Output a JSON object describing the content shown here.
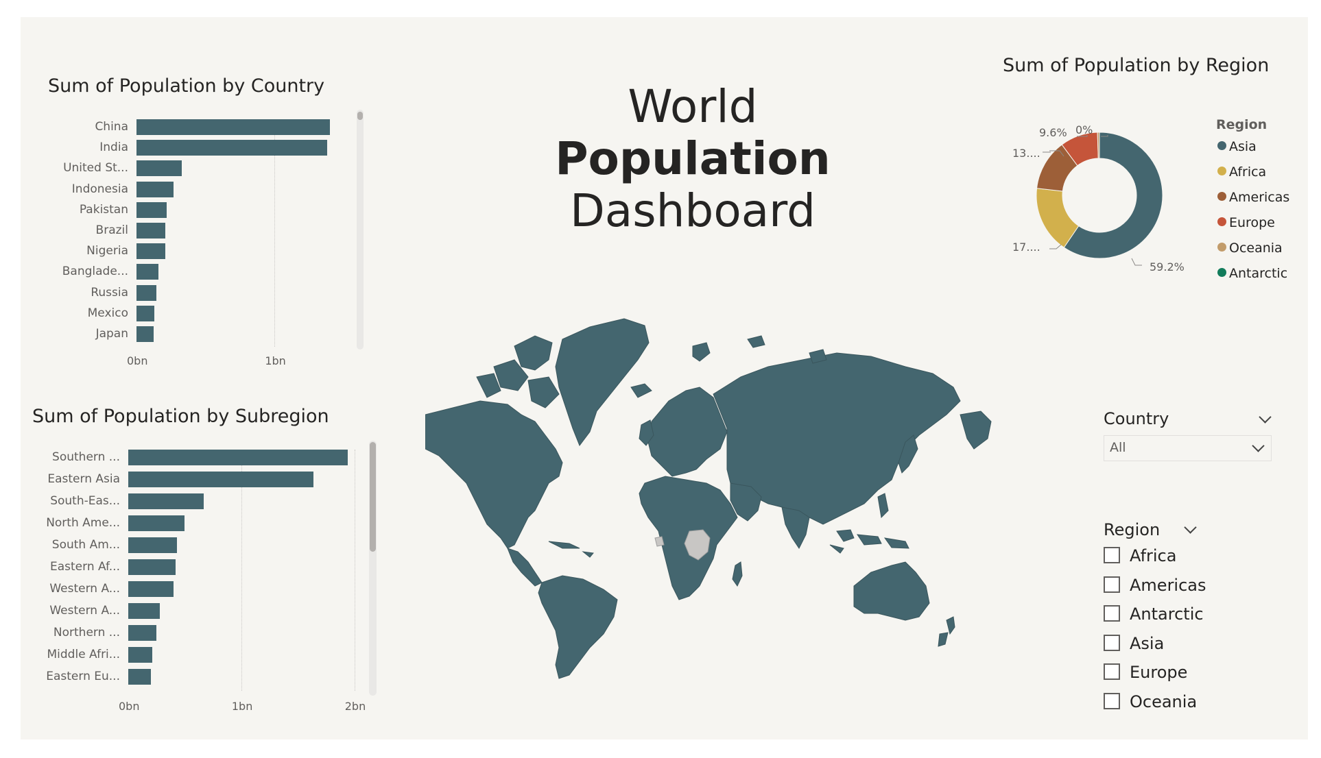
{
  "dashboard": {
    "title_line1": "World",
    "title_line2": "Population",
    "title_line3": "Dashboard"
  },
  "colors": {
    "bar": "#44666f",
    "background": "#f6f5f1",
    "asia": "#44666f",
    "africa": "#d2b04c",
    "americas": "#9d5f38",
    "europe": "#c5553a",
    "oceania": "#c29c6b",
    "antarctic": "#127c5b"
  },
  "chart_data": [
    {
      "type": "bar",
      "orientation": "horizontal",
      "title": "Sum of Population by Country",
      "categories": [
        "China",
        "India",
        "United St...",
        "Indonesia",
        "Pakistan",
        "Brazil",
        "Nigeria",
        "Banglade...",
        "Russia",
        "Mexico",
        "Japan"
      ],
      "values": [
        1.4,
        1.38,
        0.33,
        0.27,
        0.22,
        0.21,
        0.21,
        0.16,
        0.145,
        0.13,
        0.125
      ],
      "xlim": [
        0,
        1.5
      ],
      "ticks": [
        {
          "value": 0,
          "label": "0bn"
        },
        {
          "value": 1,
          "label": "1bn"
        }
      ],
      "unit": "bn"
    },
    {
      "type": "bar",
      "orientation": "horizontal",
      "title": "Sum of Population by Subregion",
      "categories": [
        "Southern ...",
        "Eastern Asia",
        "South-Eas...",
        "North Ame...",
        "South Am...",
        "Eastern Af...",
        "Western A...",
        "Western A...",
        "Northern ...",
        "Middle Afri...",
        "Eastern Eu..."
      ],
      "values": [
        1.94,
        1.64,
        0.67,
        0.5,
        0.43,
        0.42,
        0.4,
        0.28,
        0.25,
        0.21,
        0.2
      ],
      "xlim": [
        0,
        2.05
      ],
      "ticks": [
        {
          "value": 0,
          "label": "0bn"
        },
        {
          "value": 1,
          "label": "1bn"
        },
        {
          "value": 2,
          "label": "2bn"
        }
      ],
      "unit": "bn"
    },
    {
      "type": "pie",
      "variant": "donut",
      "title": "Sum of Population by Region",
      "legend_title": "Region",
      "categories": [
        "Asia",
        "Africa",
        "Americas",
        "Europe",
        "Oceania",
        "Antarctic"
      ],
      "values": [
        59.2,
        17.2,
        13.0,
        9.6,
        0.5,
        0.0
      ],
      "labels": [
        "59.2%",
        "17....",
        "13....",
        "9.6%",
        "0%",
        ""
      ],
      "legend_position": "right"
    }
  ],
  "slicers": {
    "country": {
      "title": "Country",
      "value": "All"
    },
    "region": {
      "title": "Region",
      "options": [
        "Africa",
        "Americas",
        "Antarctic",
        "Asia",
        "Europe",
        "Oceania"
      ]
    }
  },
  "map": {
    "name": "world-map",
    "fill": "#44666f",
    "no_data_fill": "#c8c6c4"
  }
}
